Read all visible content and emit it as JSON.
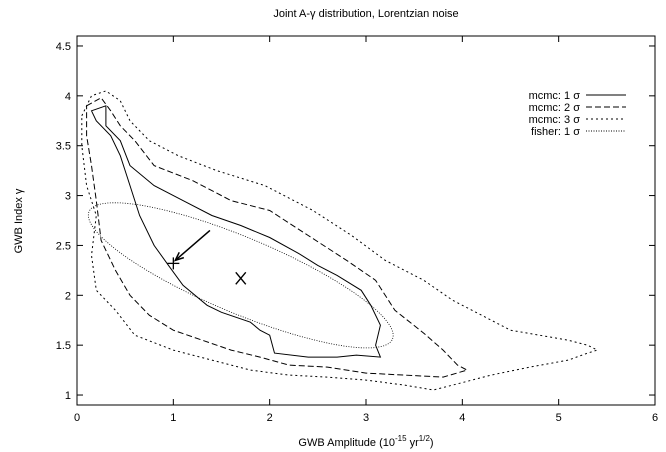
{
  "chart_data": {
    "type": "contour",
    "title": "Joint A-γ distribution, Lorentzian noise",
    "xlabel_main": "GWB Amplitude (10",
    "xlabel_exp1": "-15",
    "xlabel_mid": " yr",
    "xlabel_exp2": "1/2",
    "xlabel_end": ")",
    "ylabel": "GWB Index γ",
    "xlim": [
      0,
      6
    ],
    "ylim": [
      0.9,
      4.6
    ],
    "x_ticks": [
      0,
      1,
      2,
      3,
      4,
      5,
      6
    ],
    "y_ticks": [
      1,
      1.5,
      2,
      2.5,
      3,
      3.5,
      4,
      4.5
    ],
    "x_tick_labels": [
      "0",
      "1",
      "2",
      "3",
      "4",
      "5",
      "6"
    ],
    "y_tick_labels": [
      "1",
      "1.5",
      "2",
      "2.5",
      "3",
      "3.5",
      "4",
      "4.5"
    ],
    "grid": false,
    "legend_position": "top-right",
    "series": [
      {
        "name": "mcmc: 1 σ",
        "style": "solid",
        "points": [
          [
            0.15,
            3.85
          ],
          [
            0.3,
            3.9
          ],
          [
            0.3,
            3.7
          ],
          [
            0.45,
            3.55
          ],
          [
            0.55,
            3.3
          ],
          [
            0.8,
            3.1
          ],
          [
            1.1,
            2.95
          ],
          [
            1.4,
            2.8
          ],
          [
            1.7,
            2.7
          ],
          [
            2.0,
            2.58
          ],
          [
            2.3,
            2.42
          ],
          [
            2.5,
            2.3
          ],
          [
            2.7,
            2.2
          ],
          [
            2.95,
            2.05
          ],
          [
            3.05,
            1.9
          ],
          [
            3.15,
            1.7
          ],
          [
            3.1,
            1.5
          ],
          [
            3.15,
            1.38
          ],
          [
            2.9,
            1.4
          ],
          [
            2.7,
            1.38
          ],
          [
            2.4,
            1.38
          ],
          [
            2.05,
            1.42
          ],
          [
            2.0,
            1.6
          ],
          [
            1.9,
            1.65
          ],
          [
            1.8,
            1.73
          ],
          [
            1.5,
            1.83
          ],
          [
            1.35,
            1.9
          ],
          [
            1.1,
            2.1
          ],
          [
            0.95,
            2.3
          ],
          [
            0.8,
            2.5
          ],
          [
            0.65,
            2.8
          ],
          [
            0.55,
            3.1
          ],
          [
            0.45,
            3.4
          ],
          [
            0.35,
            3.6
          ],
          [
            0.2,
            3.75
          ],
          [
            0.15,
            3.85
          ]
        ]
      },
      {
        "name": "mcmc: 2 σ",
        "style": "dashed",
        "points": [
          [
            0.1,
            3.9
          ],
          [
            0.25,
            3.98
          ],
          [
            0.35,
            3.85
          ],
          [
            0.45,
            3.7
          ],
          [
            0.6,
            3.55
          ],
          [
            0.8,
            3.3
          ],
          [
            1.2,
            3.15
          ],
          [
            1.6,
            2.95
          ],
          [
            2.0,
            2.85
          ],
          [
            2.4,
            2.6
          ],
          [
            2.8,
            2.35
          ],
          [
            3.1,
            2.15
          ],
          [
            3.3,
            1.85
          ],
          [
            3.6,
            1.62
          ],
          [
            3.8,
            1.45
          ],
          [
            3.95,
            1.3
          ],
          [
            4.05,
            1.25
          ],
          [
            3.8,
            1.18
          ],
          [
            3.4,
            1.2
          ],
          [
            3.0,
            1.22
          ],
          [
            2.6,
            1.28
          ],
          [
            2.2,
            1.3
          ],
          [
            1.9,
            1.38
          ],
          [
            1.6,
            1.45
          ],
          [
            1.3,
            1.55
          ],
          [
            1.0,
            1.65
          ],
          [
            0.75,
            1.8
          ],
          [
            0.55,
            2.0
          ],
          [
            0.4,
            2.25
          ],
          [
            0.25,
            2.55
          ],
          [
            0.2,
            2.95
          ],
          [
            0.15,
            3.3
          ],
          [
            0.1,
            3.6
          ],
          [
            0.1,
            3.9
          ]
        ]
      },
      {
        "name": "mcmc: 3 σ",
        "style": "dotted",
        "points": [
          [
            0.05,
            3.8
          ],
          [
            0.15,
            4.0
          ],
          [
            0.3,
            4.05
          ],
          [
            0.45,
            3.95
          ],
          [
            0.55,
            3.75
          ],
          [
            0.75,
            3.55
          ],
          [
            1.05,
            3.4
          ],
          [
            1.45,
            3.25
          ],
          [
            1.95,
            3.1
          ],
          [
            2.45,
            2.85
          ],
          [
            2.85,
            2.6
          ],
          [
            3.2,
            2.35
          ],
          [
            3.6,
            2.15
          ],
          [
            3.9,
            1.95
          ],
          [
            4.2,
            1.8
          ],
          [
            4.5,
            1.65
          ],
          [
            4.8,
            1.6
          ],
          [
            5.1,
            1.55
          ],
          [
            5.3,
            1.5
          ],
          [
            5.4,
            1.45
          ],
          [
            5.3,
            1.42
          ],
          [
            5.1,
            1.35
          ],
          [
            4.7,
            1.28
          ],
          [
            4.3,
            1.2
          ],
          [
            3.9,
            1.1
          ],
          [
            3.7,
            1.05
          ],
          [
            3.4,
            1.1
          ],
          [
            3.0,
            1.15
          ],
          [
            2.6,
            1.18
          ],
          [
            2.2,
            1.2
          ],
          [
            1.8,
            1.25
          ],
          [
            1.4,
            1.35
          ],
          [
            1.0,
            1.45
          ],
          [
            0.6,
            1.6
          ],
          [
            0.4,
            1.85
          ],
          [
            0.2,
            2.05
          ],
          [
            0.15,
            2.4
          ],
          [
            0.2,
            2.8
          ],
          [
            0.1,
            3.1
          ],
          [
            0.05,
            3.5
          ],
          [
            0.05,
            3.8
          ]
        ]
      }
    ],
    "fisher_ellipse": {
      "name": "fisher: 1 σ",
      "style": "fine-dotted",
      "center": [
        1.7,
        2.2
      ],
      "semi_major": 1.7,
      "semi_minor": 0.38,
      "angle_deg": -22
    },
    "markers": [
      {
        "type": "plus",
        "x": 1.0,
        "y": 2.32,
        "label": "+"
      },
      {
        "type": "cross",
        "x": 1.7,
        "y": 2.17,
        "label": "×"
      }
    ],
    "arrow": {
      "from": [
        1.38,
        2.65
      ],
      "to": [
        1.02,
        2.35
      ]
    }
  }
}
